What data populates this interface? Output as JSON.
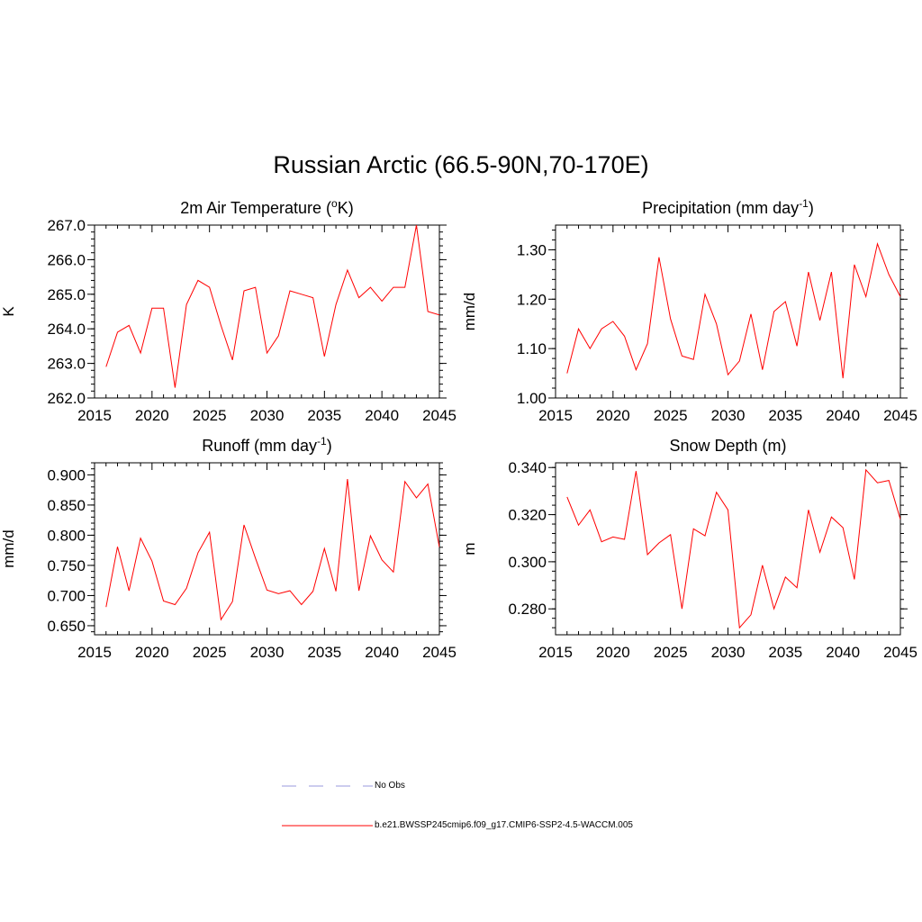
{
  "title": "Russian Arctic (66.5-90N,70-170E)",
  "colors": {
    "series": "#ff0000",
    "noobs": "#9999dd"
  },
  "legend": [
    {
      "label": "No Obs",
      "style": "dashed"
    },
    {
      "label": "b.e21.BWSSP245cmip6.f09_g17.CMIP6-SSP2-4.5-WACCM.005",
      "style": "solid"
    }
  ],
  "chart_data": [
    {
      "type": "line",
      "title": "2m Air Temperature (",
      "title_sup": "o",
      "title_tail": "K)",
      "ylabel": "K",
      "xlabel": "",
      "xlim": [
        2015,
        2045
      ],
      "ylim": [
        262.0,
        267.0
      ],
      "xticks": [
        2015,
        2020,
        2025,
        2030,
        2035,
        2040,
        2045
      ],
      "yticks": [
        262.0,
        263.0,
        264.0,
        265.0,
        266.0,
        267.0
      ],
      "ytick_labels": [
        "262.0",
        "263.0",
        "264.0",
        "265.0",
        "266.0",
        "267.0"
      ],
      "yminor": 0.2,
      "x": [
        2016,
        2017,
        2018,
        2019,
        2020,
        2021,
        2022,
        2023,
        2024,
        2025,
        2026,
        2027,
        2028,
        2029,
        2030,
        2031,
        2032,
        2033,
        2034,
        2035,
        2036,
        2037,
        2038,
        2039,
        2040,
        2041,
        2042,
        2043,
        2044,
        2045
      ],
      "series": [
        {
          "name": "b.e21.BWSSP245cmip6.f09_g17.CMIP6-SSP2-4.5-WACCM.005",
          "values": [
            262.9,
            263.9,
            264.1,
            263.3,
            264.6,
            264.6,
            262.3,
            264.7,
            265.4,
            265.2,
            264.1,
            263.1,
            265.1,
            265.2,
            263.3,
            263.8,
            265.1,
            265.0,
            264.9,
            263.2,
            264.7,
            265.7,
            264.9,
            265.2,
            264.8,
            265.2,
            265.2,
            267.0,
            264.5,
            264.4
          ]
        }
      ]
    },
    {
      "type": "line",
      "title": "Precipitation (mm day",
      "title_sup": "-1",
      "title_tail": ")",
      "ylabel": "mm/d",
      "xlabel": "",
      "xlim": [
        2015,
        2045
      ],
      "ylim": [
        1.0,
        1.35
      ],
      "xticks": [
        2015,
        2020,
        2025,
        2030,
        2035,
        2040,
        2045
      ],
      "yticks": [
        1.0,
        1.1,
        1.2,
        1.3
      ],
      "ytick_labels": [
        "1.00",
        "1.10",
        "1.20",
        "1.30"
      ],
      "yminor": 0.02,
      "x": [
        2016,
        2017,
        2018,
        2019,
        2020,
        2021,
        2022,
        2023,
        2024,
        2025,
        2026,
        2027,
        2028,
        2029,
        2030,
        2031,
        2032,
        2033,
        2034,
        2035,
        2036,
        2037,
        2038,
        2039,
        2040,
        2041,
        2042,
        2043,
        2044,
        2045
      ],
      "series": [
        {
          "name": "b.e21.BWSSP245cmip6.f09_g17.CMIP6-SSP2-4.5-WACCM.005",
          "values": [
            1.05,
            1.14,
            1.1,
            1.14,
            1.155,
            1.125,
            1.057,
            1.11,
            1.285,
            1.16,
            1.085,
            1.078,
            1.21,
            1.15,
            1.047,
            1.075,
            1.17,
            1.057,
            1.175,
            1.195,
            1.105,
            1.255,
            1.157,
            1.255,
            1.04,
            1.27,
            1.205,
            1.312,
            1.25,
            1.205
          ]
        }
      ]
    },
    {
      "type": "line",
      "title": "Runoff (mm day",
      "title_sup": "-1",
      "title_tail": ")",
      "ylabel": "mm/d",
      "xlabel": "",
      "xlim": [
        2015,
        2045
      ],
      "ylim": [
        0.635,
        0.92
      ],
      "xticks": [
        2015,
        2020,
        2025,
        2030,
        2035,
        2040,
        2045
      ],
      "yticks": [
        0.65,
        0.7,
        0.75,
        0.8,
        0.85,
        0.9
      ],
      "ytick_labels": [
        "0.650",
        "0.700",
        "0.750",
        "0.800",
        "0.850",
        "0.900"
      ],
      "yminor": 0.01,
      "x": [
        2016,
        2017,
        2018,
        2019,
        2020,
        2021,
        2022,
        2023,
        2024,
        2025,
        2026,
        2027,
        2028,
        2029,
        2030,
        2031,
        2032,
        2033,
        2034,
        2035,
        2036,
        2037,
        2038,
        2039,
        2040,
        2041,
        2042,
        2043,
        2044,
        2045
      ],
      "series": [
        {
          "name": "b.e21.BWSSP245cmip6.f09_g17.CMIP6-SSP2-4.5-WACCM.005",
          "values": [
            0.681,
            0.781,
            0.708,
            0.795,
            0.757,
            0.691,
            0.685,
            0.712,
            0.771,
            0.805,
            0.66,
            0.69,
            0.817,
            0.762,
            0.709,
            0.703,
            0.708,
            0.685,
            0.707,
            0.778,
            0.707,
            0.893,
            0.708,
            0.799,
            0.759,
            0.739,
            0.889,
            0.862,
            0.885,
            0.78
          ]
        }
      ]
    },
    {
      "type": "line",
      "title": "Snow Depth (m)",
      "title_sup": "",
      "title_tail": "",
      "ylabel": "m",
      "xlabel": "",
      "xlim": [
        2015,
        2045
      ],
      "ylim": [
        0.269,
        0.342
      ],
      "xticks": [
        2015,
        2020,
        2025,
        2030,
        2035,
        2040,
        2045
      ],
      "yticks": [
        0.28,
        0.3,
        0.32,
        0.34
      ],
      "ytick_labels": [
        "0.280",
        "0.300",
        "0.320",
        "0.340"
      ],
      "yminor": 0.004,
      "x": [
        2016,
        2017,
        2018,
        2019,
        2020,
        2021,
        2022,
        2023,
        2024,
        2025,
        2026,
        2027,
        2028,
        2029,
        2030,
        2031,
        2032,
        2033,
        2034,
        2035,
        2036,
        2037,
        2038,
        2039,
        2040,
        2041,
        2042,
        2043,
        2044,
        2045
      ],
      "series": [
        {
          "name": "b.e21.BWSSP245cmip6.f09_g17.CMIP6-SSP2-4.5-WACCM.005",
          "values": [
            0.3275,
            0.3155,
            0.322,
            0.3085,
            0.3105,
            0.3095,
            0.3385,
            0.303,
            0.308,
            0.3115,
            0.28,
            0.314,
            0.311,
            0.3295,
            0.322,
            0.272,
            0.2775,
            0.2985,
            0.28,
            0.2935,
            0.289,
            0.322,
            0.304,
            0.319,
            0.3145,
            0.2925,
            0.339,
            0.3335,
            0.3345,
            0.318
          ]
        }
      ]
    }
  ]
}
